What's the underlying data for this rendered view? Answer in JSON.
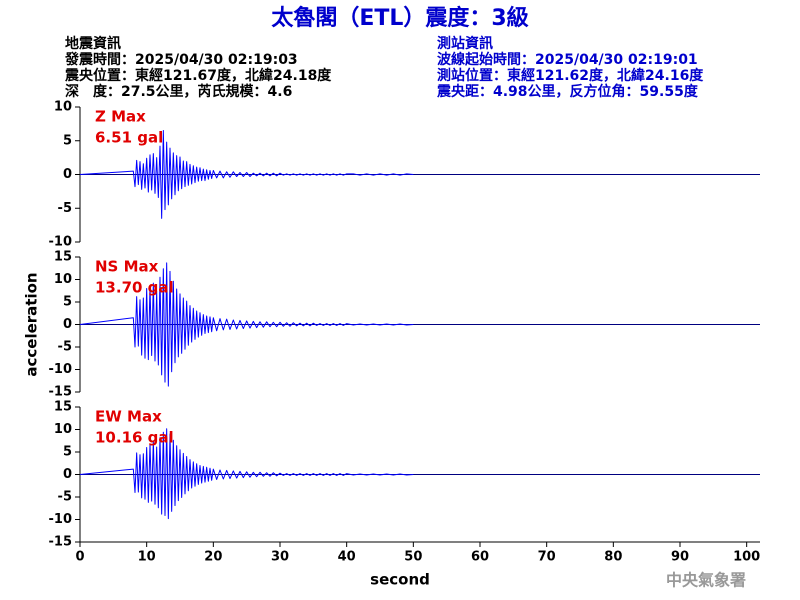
{
  "title": "太魯閣（ETL）震度：3級",
  "event_info": [
    "地震資訊",
    "發震時間：2025/04/30 02:19:03",
    "震央位置：東經121.67度，北緯24.18度",
    "深　度：27.5公里，芮氏規模：4.6"
  ],
  "station_info": [
    "測站資訊",
    "波線起始時間：2025/04/30 02:19:01",
    "測站位置：東經121.62度，北緯24.16度",
    "震央距：4.98公里，反方位角：59.55度"
  ],
  "footer": "中央氣象署",
  "chart_data": [
    {
      "type": "line",
      "color": "#0000ff",
      "annotation": [
        "Z Max",
        "6.51 gal"
      ],
      "xlim": [
        0,
        102
      ],
      "ylim": [
        -10,
        10
      ],
      "yticks": [
        -10,
        -5,
        0,
        5,
        10
      ],
      "x": [
        0,
        8,
        8.25,
        8.5,
        8.75,
        9,
        9.25,
        9.5,
        9.75,
        10,
        10.25,
        10.5,
        10.75,
        11,
        11.25,
        11.5,
        11.75,
        12,
        12.25,
        12.5,
        12.75,
        13,
        13.25,
        13.5,
        13.75,
        14,
        14.25,
        14.5,
        14.75,
        15,
        15.25,
        15.5,
        15.75,
        16,
        16.25,
        16.5,
        16.75,
        17,
        17.25,
        17.5,
        17.75,
        18,
        18.25,
        18.5,
        18.75,
        19,
        19.25,
        19.5,
        19.75,
        20,
        20.5,
        21,
        21.5,
        22,
        22.5,
        23,
        23.5,
        24,
        24.5,
        25,
        25.5,
        26,
        26.5,
        27,
        27.5,
        28,
        28.5,
        29,
        29.5,
        30,
        30.5,
        31,
        31.5,
        32,
        32.5,
        33,
        33.5,
        34,
        34.5,
        35,
        35.5,
        36,
        36.5,
        37,
        37.5,
        38,
        38.5,
        39,
        39.5,
        40,
        41,
        42,
        43,
        44,
        45,
        46,
        47,
        48,
        49,
        50
      ],
      "values": [
        0,
        0.5,
        -1.8,
        2.1,
        -1.5,
        1.9,
        -2.2,
        1.6,
        -2.0,
        2.4,
        -2.6,
        2.9,
        -2.3,
        3.1,
        -2.8,
        2.5,
        -3.4,
        4.2,
        -6.5,
        6.51,
        -5.2,
        4.8,
        -4.5,
        3.9,
        -3.6,
        3.2,
        -3.0,
        2.8,
        -2.4,
        2.6,
        -2.1,
        2.0,
        -1.8,
        1.9,
        -1.6,
        1.5,
        -1.4,
        1.3,
        -1.2,
        1.1,
        -1.0,
        1.0,
        -0.9,
        0.8,
        -0.9,
        0.7,
        -0.7,
        0.6,
        -0.6,
        0.6,
        -0.5,
        0.5,
        -0.5,
        0.4,
        -0.4,
        0.4,
        -0.3,
        0.3,
        -0.3,
        0.3,
        -0.3,
        0.2,
        -0.2,
        0.2,
        -0.2,
        0.2,
        -0.2,
        0.2,
        -0.2,
        0.2,
        -0.1,
        0.1,
        -0.1,
        0.1,
        -0.1,
        0.1,
        -0.1,
        0.1,
        -0.1,
        0.1,
        -0.1,
        0.1,
        -0.1,
        0.1,
        -0.1,
        0.1,
        -0.1,
        0.1,
        -0.1,
        0.1,
        0.1,
        -0.1,
        0.1,
        -0.1,
        0.1,
        -0.1,
        0.1,
        -0.1,
        0.1,
        0
      ]
    },
    {
      "type": "line",
      "color": "#0000ff",
      "annotation": [
        "NS Max",
        "13.70 gal"
      ],
      "ylabel": "acceleration",
      "xlim": [
        0,
        102
      ],
      "ylim": [
        -15,
        15
      ],
      "yticks": [
        -15,
        -10,
        -5,
        0,
        5,
        10,
        15
      ],
      "x": [
        0,
        8,
        8.25,
        8.5,
        8.75,
        9,
        9.25,
        9.5,
        9.75,
        10,
        10.25,
        10.5,
        10.75,
        11,
        11.25,
        11.5,
        11.75,
        12,
        12.25,
        12.5,
        12.75,
        13,
        13.25,
        13.5,
        13.75,
        14,
        14.25,
        14.5,
        14.75,
        15,
        15.25,
        15.5,
        15.75,
        16,
        16.25,
        16.5,
        16.75,
        17,
        17.25,
        17.5,
        17.75,
        18,
        18.25,
        18.5,
        18.75,
        19,
        19.25,
        19.5,
        19.75,
        20,
        20.5,
        21,
        21.5,
        22,
        22.5,
        23,
        23.5,
        24,
        24.5,
        25,
        25.5,
        26,
        26.5,
        27,
        27.5,
        28,
        28.5,
        29,
        29.5,
        30,
        30.5,
        31,
        31.5,
        32,
        32.5,
        33,
        33.5,
        34,
        34.5,
        35,
        35.5,
        36,
        36.5,
        37,
        37.5,
        38,
        38.5,
        39,
        39.5,
        40,
        41,
        42,
        43,
        44,
        45,
        46,
        47,
        48,
        49,
        50
      ],
      "values": [
        0,
        1.5,
        -5.0,
        6.2,
        -4.8,
        5.5,
        -6.8,
        5.9,
        -7.5,
        8.0,
        -7.8,
        8.5,
        -6.9,
        9.2,
        -8.1,
        7.4,
        -9.0,
        10.5,
        -11.2,
        12.4,
        -12.8,
        13.7,
        -13.7,
        11.8,
        -10.5,
        9.6,
        -8.5,
        7.9,
        -7.2,
        6.8,
        -6.4,
        5.9,
        -5.5,
        5.2,
        -4.6,
        4.2,
        -3.9,
        3.6,
        -3.3,
        3.0,
        -2.8,
        2.6,
        -2.4,
        2.2,
        -2.0,
        1.9,
        -1.8,
        1.7,
        -1.6,
        1.5,
        -1.4,
        1.3,
        -1.2,
        1.2,
        -1.1,
        1.0,
        -1.0,
        0.9,
        -0.9,
        0.8,
        -0.8,
        0.7,
        -0.7,
        0.6,
        -0.6,
        0.6,
        -0.5,
        0.5,
        -0.5,
        0.5,
        -0.4,
        0.4,
        -0.4,
        0.4,
        -0.3,
        0.3,
        -0.3,
        0.3,
        -0.3,
        0.3,
        -0.2,
        0.2,
        -0.2,
        0.2,
        -0.2,
        0.2,
        -0.2,
        0.2,
        -0.2,
        0.2,
        -0.1,
        0.1,
        -0.1,
        0.1,
        -0.1,
        0.1,
        -0.1,
        0.1,
        -0.1,
        0
      ]
    },
    {
      "type": "line",
      "color": "#0000ff",
      "annotation": [
        "EW Max",
        "10.16 gal"
      ],
      "xlabel": "second",
      "xlim": [
        0,
        102
      ],
      "xticks": [
        0,
        10,
        20,
        30,
        40,
        50,
        60,
        70,
        80,
        90,
        100
      ],
      "ylim": [
        -15,
        15
      ],
      "yticks": [
        -15,
        -10,
        -5,
        0,
        5,
        10,
        15
      ],
      "x": [
        0,
        8,
        8.25,
        8.5,
        8.75,
        9,
        9.25,
        9.5,
        9.75,
        10,
        10.25,
        10.5,
        10.75,
        11,
        11.25,
        11.5,
        11.75,
        12,
        12.25,
        12.5,
        12.75,
        13,
        13.25,
        13.5,
        13.75,
        14,
        14.25,
        14.5,
        14.75,
        15,
        15.25,
        15.5,
        15.75,
        16,
        16.25,
        16.5,
        16.75,
        17,
        17.25,
        17.5,
        17.75,
        18,
        18.25,
        18.5,
        18.75,
        19,
        19.25,
        19.5,
        19.75,
        20,
        20.5,
        21,
        21.5,
        22,
        22.5,
        23,
        23.5,
        24,
        24.5,
        25,
        25.5,
        26,
        26.5,
        27,
        27.5,
        28,
        28.5,
        29,
        29.5,
        30,
        30.5,
        31,
        31.5,
        32,
        32.5,
        33,
        33.5,
        34,
        34.5,
        35,
        35.5,
        36,
        36.5,
        37,
        37.5,
        38,
        38.5,
        39,
        39.5,
        40,
        41,
        42,
        43,
        44,
        45,
        46,
        47,
        48,
        49,
        50
      ],
      "values": [
        0,
        1.2,
        -4.0,
        4.8,
        -3.9,
        4.4,
        -5.2,
        4.6,
        -5.5,
        6.0,
        -6.2,
        6.8,
        -5.9,
        7.5,
        -6.6,
        6.1,
        -7.4,
        8.2,
        -8.8,
        9.4,
        -9.1,
        10.16,
        -9.8,
        9.0,
        -8.2,
        7.6,
        -6.9,
        6.4,
        -5.8,
        5.5,
        -5.1,
        4.7,
        -4.3,
        4.0,
        -3.6,
        3.3,
        -3.0,
        2.8,
        -2.6,
        2.4,
        -2.2,
        2.0,
        -1.9,
        1.8,
        -1.7,
        1.6,
        -1.5,
        1.4,
        -1.3,
        1.2,
        -1.1,
        1.0,
        -1.0,
        0.9,
        -0.9,
        0.8,
        -0.8,
        0.7,
        -0.7,
        0.6,
        -0.6,
        0.5,
        -0.5,
        0.5,
        -0.4,
        0.4,
        -0.4,
        0.4,
        -0.3,
        0.3,
        -0.2,
        0.2,
        -0.2,
        0.2,
        -0.2,
        0.2,
        -0.2,
        0.2,
        -0.2,
        0.2,
        -0.2,
        0.2,
        -0.2,
        0.2,
        -0.2,
        0.2,
        -0.2,
        0.2,
        -0.2,
        0.2,
        -0.1,
        0.1,
        -0.1,
        0.1,
        -0.1,
        0.1,
        -0.1,
        0.1,
        -0.1,
        0
      ]
    }
  ]
}
